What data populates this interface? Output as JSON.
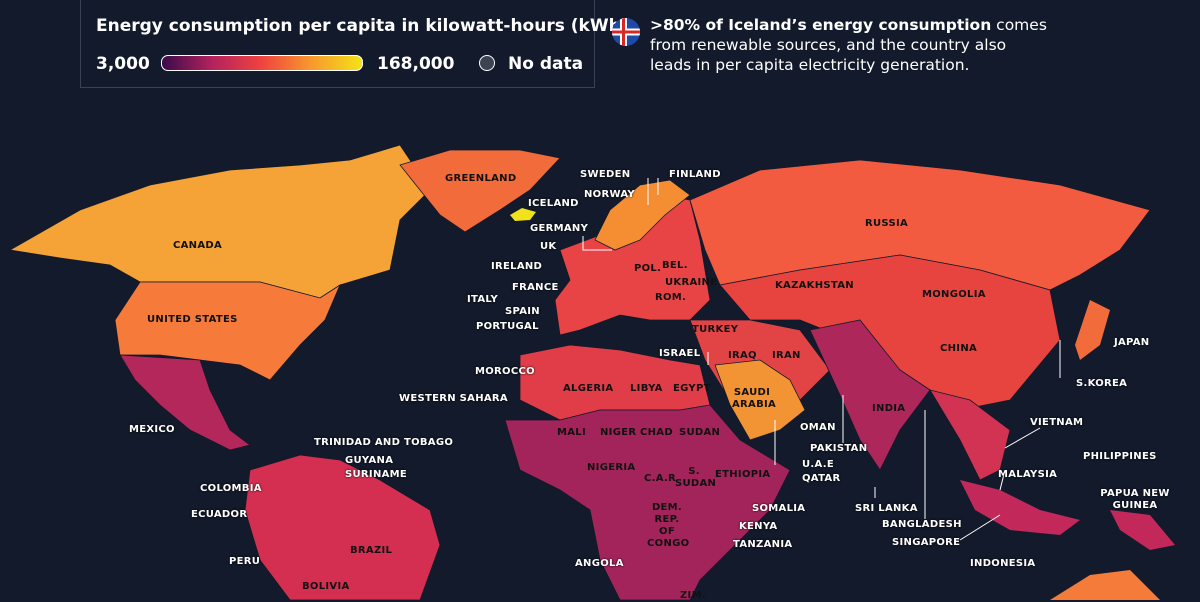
{
  "legend": {
    "title": "Energy consumption per capita in kilowatt-hours (kWh)",
    "min_label": "3,000",
    "max_label": "168,000",
    "no_data": "No data"
  },
  "note": {
    "bold": ">80% of Iceland’s energy consumption",
    "text": " comes from renewable sources, and the country also leads in per capita electricity generation."
  },
  "labels": [
    "GREENLAND",
    "ICELAND",
    "SWEDEN",
    "FINLAND",
    "NORWAY",
    "GERMANY",
    "UK",
    "IRELAND",
    "FRANCE",
    "ITALY",
    "SPAIN",
    "PORTUGAL",
    "POL.",
    "BEL.",
    "UKRAINE",
    "ROM.",
    "TURKEY",
    "RUSSIA",
    "KAZAKHSTAN",
    "MONGOLIA",
    "CHINA",
    "JAPAN",
    "S.KOREA",
    "CANADA",
    "UNITED STATES",
    "MEXICO",
    "MOROCCO",
    "WESTERN SAHARA",
    "ALGERIA",
    "LIBYA",
    "EGYPT",
    "ISRAEL",
    "IRAQ",
    "IRAN",
    "SAUDI ARABIA",
    "OMAN",
    "PAKISTAN",
    "INDIA",
    "U.A.E",
    "QATAR",
    "MALI",
    "NIGER",
    "CHAD",
    "SUDAN",
    "NIGERIA",
    "C.A.R",
    "S. SUDAN",
    "ETHIOPIA",
    "SOMALIA",
    "KENYA",
    "TANZANIA",
    "DEM. REP. OF CONGO",
    "ANGOLA",
    "ZIM.",
    "TRINIDAD AND TOBAGO",
    "GUYANA",
    "SURINAME",
    "COLOMBIA",
    "ECUADOR",
    "PERU",
    "BRAZIL",
    "BOLIVIA",
    "VIETNAM",
    "PHILIPPINES",
    "MALAYSIA",
    "SRI LANKA",
    "BANGLADESH",
    "SINGAPORE",
    "INDONESIA",
    "PAPUA NEW GUINEA"
  ]
}
